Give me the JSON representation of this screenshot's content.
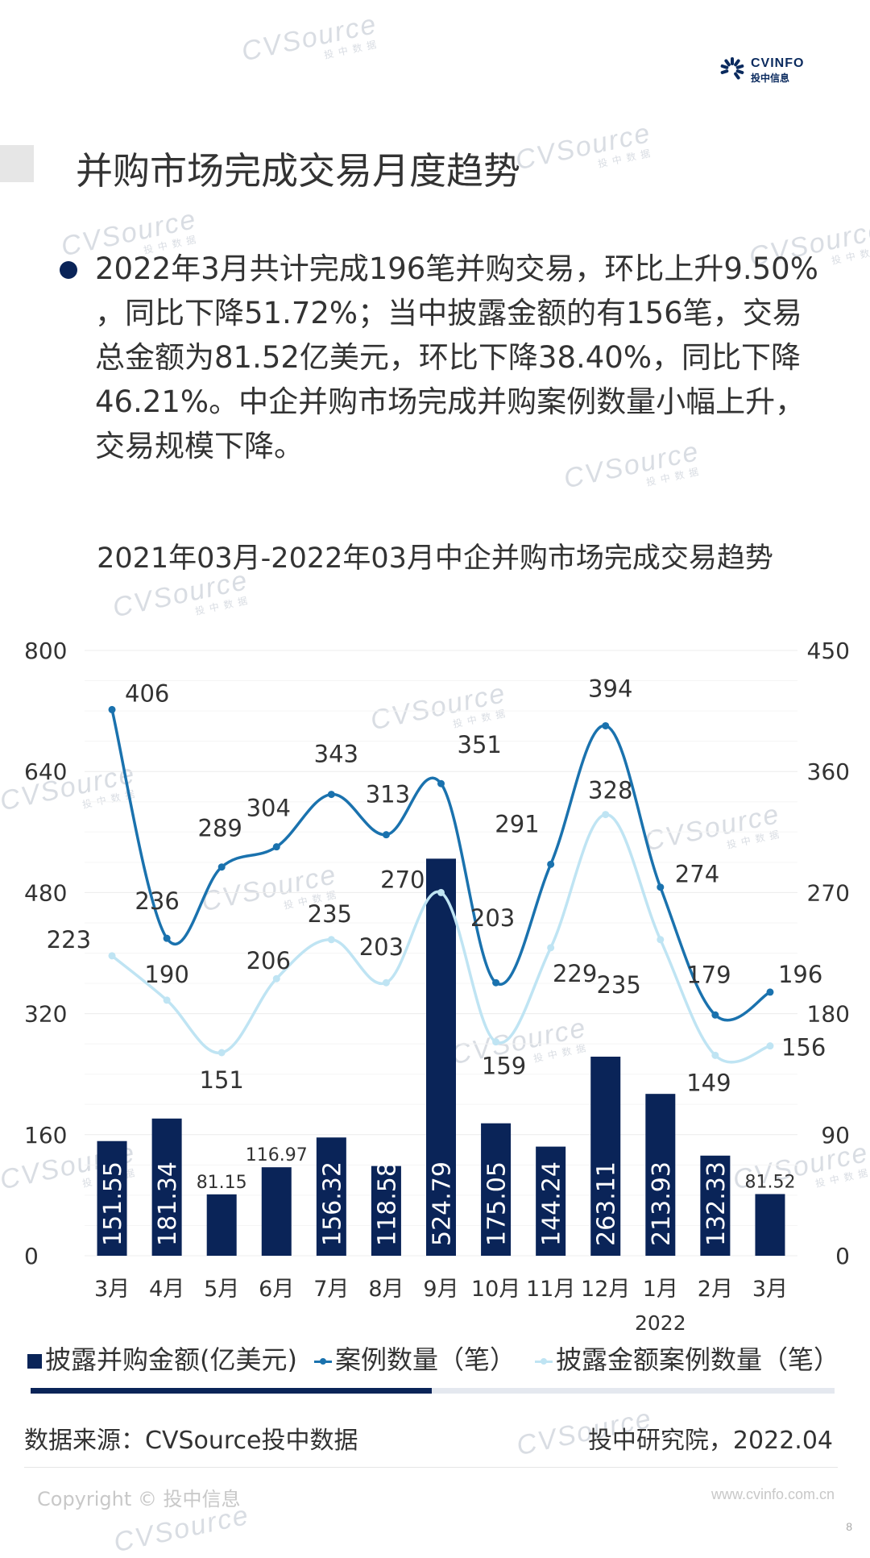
{
  "header": {
    "logo_text": "CVINFO",
    "logo_subtext": "投中信息",
    "watermark_text": "CVSource",
    "watermark_subtext": "投中数据"
  },
  "page_title": "并购市场完成交易月度趋势",
  "summary_text": "2022年3月共计完成196笔并购交易，环比上升9.50% ，同比下降51.72%；当中披露金额的有156笔，交易总金额为81.52亿美元，环比下降38.40%，同比下降46.21%。中企并购市场完成并购案例数量小幅上升，交易规模下降。",
  "chart_data": {
    "type": "bar",
    "title": "2021年03月-2022年03月中企并购市场完成交易趋势",
    "categories": [
      "3月",
      "4月",
      "5月",
      "6月",
      "7月",
      "8月",
      "9月",
      "10月",
      "11月",
      "12月",
      "1月",
      "2月",
      "3月"
    ],
    "x_group_label": "2022",
    "y_left_ticks": [
      "0",
      "160",
      "320",
      "480",
      "640",
      "800"
    ],
    "y_right_ticks": [
      "0",
      "90",
      "180",
      "270",
      "360",
      "450"
    ],
    "ylim_left": [
      0,
      800
    ],
    "ylim_right": [
      0,
      450
    ],
    "grid": true,
    "legend_position": "bottom",
    "series": [
      {
        "name": "披露并购金额(亿美元)",
        "type": "bar",
        "axis": "left",
        "color": "#0a2458",
        "values": [
          151.55,
          181.34,
          81.15,
          116.97,
          156.32,
          118.58,
          524.79,
          175.05,
          144.24,
          263.11,
          213.93,
          132.33,
          81.52
        ]
      },
      {
        "name": "案例数量（笔）",
        "type": "line",
        "axis": "right",
        "color": "#1a72ae",
        "values": [
          406,
          236,
          289,
          304,
          343,
          313,
          351,
          203,
          291,
          394,
          274,
          179,
          196
        ]
      },
      {
        "name": "披露金额案例数量（笔）",
        "type": "line",
        "axis": "right",
        "color": "#bfe4f3",
        "values": [
          223,
          190,
          151,
          206,
          235,
          203,
          270,
          159,
          229,
          328,
          235,
          149,
          156
        ]
      }
    ]
  },
  "source_text": "数据来源：CVSource投中数据",
  "institute_text": "投中研究院，2022.04",
  "copyright_text": "Copyright © 投中信息",
  "website_text": "www.cvinfo.com.cn",
  "page_number": "8"
}
